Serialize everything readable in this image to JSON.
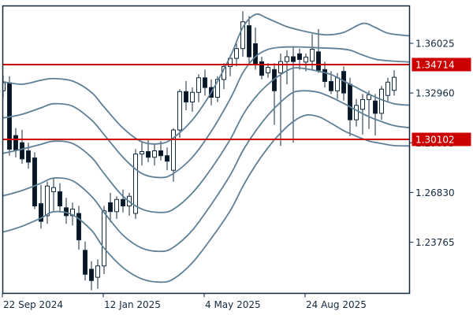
{
  "chart_data": {
    "type": "candlestick",
    "title": "",
    "columns": [
      "date",
      "open",
      "high",
      "low",
      "close"
    ],
    "x_axis": {
      "ticks": [
        {
          "label": "22 Sep 2024",
          "week": 0
        },
        {
          "label": "12 Jan 2025",
          "week": 16
        },
        {
          "label": "4 May 2025",
          "week": 32
        },
        {
          "label": "24 Aug 2025",
          "week": 48
        }
      ]
    },
    "y_axis": {
      "ticks": [
        {
          "label": "1.36025",
          "value": 1.36025
        },
        {
          "label": "1.32960",
          "value": 1.3296
        },
        {
          "label": "1.29895",
          "value": 1.29895
        },
        {
          "label": "1.26830",
          "value": 1.2683
        },
        {
          "label": "1.23765",
          "value": 1.23765
        }
      ],
      "range": [
        1.2035,
        1.384
      ]
    },
    "price_levels": [
      {
        "label": "1.34714",
        "value": 1.34714
      },
      {
        "label": "1.30102",
        "value": 1.30102
      }
    ],
    "candles": [
      [
        "2024-09-22",
        1.331,
        1.3405,
        1.3265,
        1.336
      ],
      [
        "2024-09-29",
        1.336,
        1.34,
        1.291,
        1.295
      ],
      [
        "2024-10-06",
        1.3034,
        1.308,
        1.29,
        1.2945
      ],
      [
        "2024-10-13",
        1.299,
        1.3069,
        1.286,
        1.289
      ],
      [
        "2024-10-20",
        1.294,
        1.299,
        1.283,
        1.287
      ],
      [
        "2024-10-27",
        1.2896,
        1.293,
        1.258,
        1.26
      ],
      [
        "2024-11-03",
        1.2614,
        1.273,
        1.246,
        1.2505
      ],
      [
        "2024-11-10",
        1.254,
        1.275,
        1.249,
        1.2723
      ],
      [
        "2024-11-17",
        1.2688,
        1.277,
        1.257,
        1.2713
      ],
      [
        "2024-11-24",
        1.2688,
        1.274,
        1.256,
        1.26
      ],
      [
        "2024-12-01",
        1.2589,
        1.265,
        1.249,
        1.254
      ],
      [
        "2024-12-08",
        1.254,
        1.262,
        1.248,
        1.258
      ],
      [
        "2024-12-15",
        1.2554,
        1.26,
        1.233,
        1.2391
      ],
      [
        "2024-12-22",
        1.2327,
        1.238,
        1.214,
        1.2179
      ],
      [
        "2024-12-29",
        1.221,
        1.226,
        1.208,
        1.214
      ],
      [
        "2025-01-05",
        1.216,
        1.227,
        1.209,
        1.223
      ],
      [
        "2025-01-12",
        1.223,
        1.26,
        1.218,
        1.257
      ],
      [
        "2025-01-19",
        1.262,
        1.268,
        1.25,
        1.2565
      ],
      [
        "2025-01-26",
        1.2565,
        1.266,
        1.252,
        1.264
      ],
      [
        "2025-02-02",
        1.264,
        1.27,
        1.256,
        1.26
      ],
      [
        "2025-02-09",
        1.26,
        1.268,
        1.254,
        1.266
      ],
      [
        "2025-02-16",
        1.2554,
        1.295,
        1.252,
        1.292
      ],
      [
        "2025-02-23",
        1.292,
        1.3,
        1.285,
        1.2935
      ],
      [
        "2025-03-02",
        1.2935,
        1.301,
        1.287,
        1.29
      ],
      [
        "2025-03-09",
        1.29,
        1.298,
        1.285,
        1.294
      ],
      [
        "2025-03-16",
        1.294,
        1.3,
        1.288,
        1.291
      ],
      [
        "2025-03-23",
        1.291,
        1.296,
        1.282,
        1.2876
      ],
      [
        "2025-03-30",
        1.282,
        1.308,
        1.275,
        1.3068
      ],
      [
        "2025-04-06",
        1.3068,
        1.332,
        1.302,
        1.3305
      ],
      [
        "2025-04-13",
        1.3305,
        1.337,
        1.319,
        1.3241
      ],
      [
        "2025-04-20",
        1.3241,
        1.333,
        1.318,
        1.33
      ],
      [
        "2025-04-27",
        1.33,
        1.3412,
        1.324,
        1.339
      ],
      [
        "2025-05-04",
        1.339,
        1.344,
        1.328,
        1.333
      ],
      [
        "2025-05-11",
        1.333,
        1.338,
        1.322,
        1.327
      ],
      [
        "2025-05-18",
        1.327,
        1.34,
        1.324,
        1.338
      ],
      [
        "2025-05-25",
        1.338,
        1.348,
        1.332,
        1.346
      ],
      [
        "2025-06-01",
        1.346,
        1.353,
        1.34,
        1.351
      ],
      [
        "2025-06-08",
        1.351,
        1.36,
        1.346,
        1.357
      ],
      [
        "2025-06-15",
        1.357,
        1.38,
        1.352,
        1.3735
      ],
      [
        "2025-06-22",
        1.3711,
        1.377,
        1.348,
        1.3519
      ],
      [
        "2025-06-29",
        1.36,
        1.37,
        1.344,
        1.3476
      ],
      [
        "2025-07-06",
        1.3489,
        1.352,
        1.338,
        1.3405
      ],
      [
        "2025-07-13",
        1.342,
        1.348,
        1.339,
        1.3454
      ],
      [
        "2025-07-20",
        1.3441,
        1.348,
        1.31,
        1.331
      ],
      [
        "2025-07-27",
        1.342,
        1.354,
        1.297,
        1.349
      ],
      [
        "2025-08-03",
        1.349,
        1.356,
        1.335,
        1.352
      ],
      [
        "2025-08-10",
        1.352,
        1.358,
        1.299,
        1.349
      ],
      [
        "2025-08-17",
        1.3538,
        1.357,
        1.344,
        1.3503
      ],
      [
        "2025-08-24",
        1.3487,
        1.354,
        1.343,
        1.3517
      ],
      [
        "2025-08-31",
        1.3492,
        1.366,
        1.344,
        1.3566
      ],
      [
        "2025-09-07",
        1.355,
        1.369,
        1.342,
        1.3436
      ],
      [
        "2025-09-14",
        1.3441,
        1.349,
        1.333,
        1.3367
      ],
      [
        "2025-09-21",
        1.3367,
        1.343,
        1.329,
        1.331
      ],
      [
        "2025-09-28",
        1.331,
        1.342,
        1.326,
        1.339
      ],
      [
        "2025-10-05",
        1.3429,
        1.346,
        1.325,
        1.3296
      ],
      [
        "2025-10-12",
        1.335,
        1.339,
        1.303,
        1.3131
      ],
      [
        "2025-10-19",
        1.3131,
        1.326,
        1.309,
        1.322
      ],
      [
        "2025-10-26",
        1.3196,
        1.329,
        1.304,
        1.3256
      ],
      [
        "2025-11-02",
        1.3256,
        1.331,
        1.3075,
        1.3285
      ],
      [
        "2025-11-09",
        1.3247,
        1.329,
        1.3034,
        1.3171
      ],
      [
        "2025-11-16",
        1.3171,
        1.334,
        1.313,
        1.332
      ],
      [
        "2025-11-23",
        1.3281,
        1.339,
        1.324,
        1.3363
      ],
      [
        "2025-11-30",
        1.3313,
        1.3436,
        1.328,
        1.3393
      ]
    ],
    "bands": [
      {
        "name": "upper-outer",
        "points": [
          [
            0,
            1.3365
          ],
          [
            3,
            1.335
          ],
          [
            6,
            1.3375
          ],
          [
            8,
            1.3385
          ],
          [
            11,
            1.337
          ],
          [
            14,
            1.33
          ],
          [
            16,
            1.321
          ],
          [
            19,
            1.308
          ],
          [
            22,
            1.2995
          ],
          [
            25,
            1.2985
          ],
          [
            27,
            1.302
          ],
          [
            30,
            1.313
          ],
          [
            33,
            1.33
          ],
          [
            36,
            1.352
          ],
          [
            38,
            1.37
          ],
          [
            40,
            1.378
          ],
          [
            42,
            1.3755
          ],
          [
            45,
            1.3705
          ],
          [
            48,
            1.3675
          ],
          [
            51,
            1.3655
          ],
          [
            54,
            1.367
          ],
          [
            57,
            1.3725
          ],
          [
            59,
            1.37
          ],
          [
            61,
            1.3665
          ],
          [
            64,
            1.365
          ]
        ]
      },
      {
        "name": "upper-inner",
        "points": [
          [
            0,
            1.3143
          ],
          [
            3,
            1.3165
          ],
          [
            6,
            1.3205
          ],
          [
            8,
            1.323
          ],
          [
            11,
            1.3215
          ],
          [
            14,
            1.313
          ],
          [
            16,
            1.304
          ],
          [
            19,
            1.29
          ],
          [
            22,
            1.28
          ],
          [
            25,
            1.2775
          ],
          [
            27,
            1.28
          ],
          [
            30,
            1.29
          ],
          [
            33,
            1.306
          ],
          [
            36,
            1.326
          ],
          [
            38,
            1.342
          ],
          [
            40,
            1.352
          ],
          [
            42,
            1.3565
          ],
          [
            44,
            1.3578
          ],
          [
            47,
            1.358
          ],
          [
            50,
            1.3575
          ],
          [
            53,
            1.357
          ],
          [
            55,
            1.356
          ],
          [
            57,
            1.353
          ],
          [
            59,
            1.3505
          ],
          [
            61,
            1.3495
          ],
          [
            64,
            1.3488
          ]
        ]
      },
      {
        "name": "middle",
        "points": [
          [
            0,
            1.2925
          ],
          [
            3,
            1.295
          ],
          [
            6,
            1.298
          ],
          [
            8,
            1.2999
          ],
          [
            11,
            1.2985
          ],
          [
            14,
            1.29
          ],
          [
            16,
            1.28
          ],
          [
            19,
            1.266
          ],
          [
            22,
            1.258
          ],
          [
            25,
            1.256
          ],
          [
            27,
            1.258
          ],
          [
            30,
            1.268
          ],
          [
            33,
            1.283
          ],
          [
            36,
            1.301
          ],
          [
            38,
            1.316
          ],
          [
            40,
            1.327
          ],
          [
            42,
            1.335
          ],
          [
            44,
            1.341
          ],
          [
            46,
            1.345
          ],
          [
            48,
            1.3445
          ],
          [
            50,
            1.343
          ],
          [
            52,
            1.341
          ],
          [
            54,
            1.337
          ],
          [
            56,
            1.333
          ],
          [
            58,
            1.329
          ],
          [
            60,
            1.3255
          ],
          [
            62,
            1.323
          ],
          [
            64,
            1.3222
          ]
        ]
      },
      {
        "name": "lower-inner",
        "points": [
          [
            0,
            1.2663
          ],
          [
            3,
            1.2695
          ],
          [
            6,
            1.274
          ],
          [
            8,
            1.2772
          ],
          [
            11,
            1.2755
          ],
          [
            14,
            1.266
          ],
          [
            16,
            1.256
          ],
          [
            19,
            1.242
          ],
          [
            22,
            1.234
          ],
          [
            25,
            1.232
          ],
          [
            27,
            1.2345
          ],
          [
            30,
            1.245
          ],
          [
            33,
            1.261
          ],
          [
            36,
            1.279
          ],
          [
            38,
            1.294
          ],
          [
            40,
            1.306
          ],
          [
            42,
            1.316
          ],
          [
            44,
            1.324
          ],
          [
            46,
            1.33
          ],
          [
            48,
            1.331
          ],
          [
            50,
            1.33
          ],
          [
            52,
            1.327
          ],
          [
            54,
            1.3232
          ],
          [
            56,
            1.319
          ],
          [
            58,
            1.315
          ],
          [
            60,
            1.312
          ],
          [
            62,
            1.3095
          ],
          [
            64,
            1.3084
          ]
        ]
      },
      {
        "name": "lower-outer",
        "points": [
          [
            0,
            1.244
          ],
          [
            3,
            1.2475
          ],
          [
            6,
            1.2525
          ],
          [
            8,
            1.2564
          ],
          [
            11,
            1.2545
          ],
          [
            14,
            1.245
          ],
          [
            16,
            1.234
          ],
          [
            19,
            1.222
          ],
          [
            22,
            1.215
          ],
          [
            25,
            1.213
          ],
          [
            27,
            1.215
          ],
          [
            30,
            1.225
          ],
          [
            33,
            1.24
          ],
          [
            36,
            1.257
          ],
          [
            38,
            1.272
          ],
          [
            40,
            1.285
          ],
          [
            42,
            1.296
          ],
          [
            44,
            1.305
          ],
          [
            46,
            1.312
          ],
          [
            48,
            1.316
          ],
          [
            50,
            1.315
          ],
          [
            52,
            1.311
          ],
          [
            54,
            1.3064
          ],
          [
            56,
            1.303
          ],
          [
            58,
            1.3
          ],
          [
            60,
            1.2985
          ],
          [
            62,
            1.2972
          ],
          [
            64,
            1.297
          ]
        ]
      }
    ]
  },
  "colors": {
    "background": "#ffffff",
    "frame": "#10293f",
    "text": "#14293e",
    "band": "#5d8096",
    "level": "#cc0000",
    "bull_fill": "#ffffff",
    "bear_fill": "#0a1622",
    "badge_text": "#ffffff"
  }
}
